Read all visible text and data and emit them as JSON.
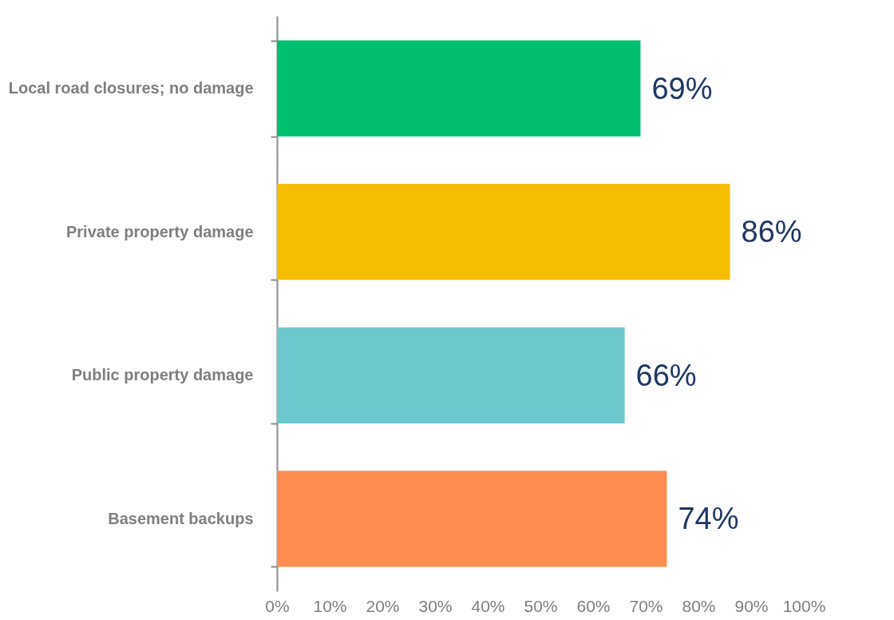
{
  "chart_data": {
    "type": "bar",
    "orientation": "horizontal",
    "categories": [
      "Local road closures; no damage",
      "Private property damage",
      "Public property damage",
      "Basement backups"
    ],
    "values": [
      69,
      86,
      66,
      74
    ],
    "colors": [
      "#00bf6f",
      "#f6be00",
      "#6cc8cc",
      "#ff8c50"
    ],
    "value_labels": [
      "69%",
      "86%",
      "66%",
      "74%"
    ],
    "xlim": [
      0,
      100
    ],
    "xticks": [
      {
        "value": 0,
        "label": "0%"
      },
      {
        "value": 10,
        "label": "10%"
      },
      {
        "value": 20,
        "label": "20%"
      },
      {
        "value": 30,
        "label": "30%"
      },
      {
        "value": 40,
        "label": "40%"
      },
      {
        "value": 50,
        "label": "50%"
      },
      {
        "value": 60,
        "label": "60%"
      },
      {
        "value": 70,
        "label": "70%"
      },
      {
        "value": 80,
        "label": "80%"
      },
      {
        "value": 90,
        "label": "90%"
      },
      {
        "value": 100,
        "label": "100%"
      }
    ],
    "grid": false,
    "legend": false
  }
}
